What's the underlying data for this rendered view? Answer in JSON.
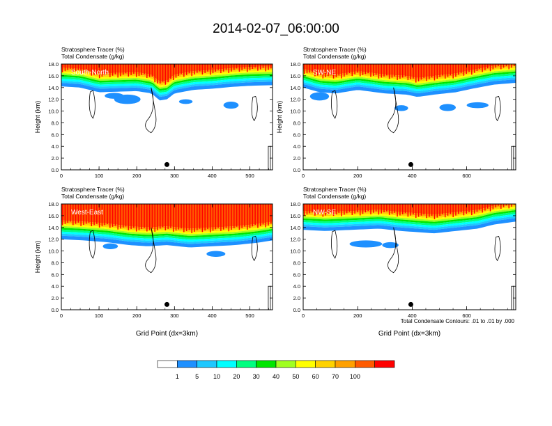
{
  "title": "2014-02-07_06:00:00",
  "colorbar": {
    "colors": [
      "#ffffff",
      "#1e90ff",
      "#1ec8ff",
      "#00ffff",
      "#00ff80",
      "#00e600",
      "#a0ff20",
      "#ffff00",
      "#ffd200",
      "#ffa000",
      "#ff5a00",
      "#ff0000"
    ],
    "labels": [
      "1",
      "5",
      "10",
      "20",
      "30",
      "40",
      "50",
      "60",
      "70",
      "100"
    ]
  },
  "contour_note": "Total Condensate Contours: .01 to .01 by .000",
  "chart_data": [
    {
      "type": "heatmap",
      "panel": "south-north",
      "title_line1": "Stratosphere Tracer   (%)",
      "title_line2": "Total Condensate   (g/kg)",
      "label": "South-North",
      "ylabel": "Height (km)",
      "xlabel": "",
      "xlim": [
        0,
        560
      ],
      "ylim": [
        0,
        18
      ],
      "xticks": [
        "0",
        "100",
        "200",
        "300",
        "400",
        "500"
      ],
      "xtick_values": [
        0,
        100,
        200,
        300,
        400,
        500
      ],
      "yticks": [
        "0.0",
        "2.0",
        "4.0",
        "6.0",
        "8.0",
        "10.0",
        "12.0",
        "14.0",
        "16.0",
        "18.0"
      ],
      "marker_x": 280,
      "profile": {
        "x": [
          0,
          50,
          100,
          150,
          200,
          240,
          260,
          280,
          300,
          350,
          400,
          450,
          500,
          560
        ],
        "h": [
          14.2,
          14.0,
          13.2,
          13.3,
          13.4,
          13.0,
          11.8,
          12.0,
          13.0,
          13.6,
          13.8,
          14.1,
          14.3,
          14.4
        ]
      },
      "patches": [
        [
          175,
          12.0,
          35,
          0.8
        ],
        [
          140,
          12.6,
          25,
          0.5
        ],
        [
          450,
          11.0,
          20,
          0.6
        ],
        [
          330,
          11.6,
          18,
          0.4
        ]
      ]
    },
    {
      "type": "heatmap",
      "panel": "sw-ne",
      "title_line1": "Stratosphere Tracer   (%)",
      "title_line2": "Total Condensate   (g/kg)",
      "label": "SW-NE",
      "ylabel": "Height (km)",
      "xlabel": "",
      "xlim": [
        0,
        780
      ],
      "ylim": [
        0,
        18
      ],
      "xticks": [
        "0",
        "200",
        "400",
        "600"
      ],
      "xtick_values": [
        0,
        200,
        400,
        600
      ],
      "yticks": [
        "0.0",
        "2.0",
        "4.0",
        "6.0",
        "8.0",
        "10.0",
        "12.0",
        "14.0",
        "16.0",
        "18.0"
      ],
      "marker_x": 395,
      "profile": {
        "x": [
          0,
          60,
          120,
          200,
          300,
          380,
          420,
          480,
          560,
          620,
          700,
          780
        ],
        "h": [
          14.0,
          13.2,
          13.0,
          13.6,
          13.0,
          12.8,
          12.4,
          12.8,
          13.2,
          13.8,
          14.5,
          14.8
        ]
      },
      "patches": [
        [
          60,
          12.5,
          35,
          0.7
        ],
        [
          360,
          10.5,
          25,
          0.5
        ],
        [
          530,
          10.6,
          30,
          0.6
        ],
        [
          640,
          11.0,
          40,
          0.5
        ]
      ]
    },
    {
      "type": "heatmap",
      "panel": "west-east",
      "title_line1": "Stratosphere Tracer   (%)",
      "title_line2": "Total Condensate   (g/kg)",
      "label": "West-East",
      "ylabel": "Height (km)",
      "xlabel": "Grid Point (dx=3km)",
      "xlim": [
        0,
        560
      ],
      "ylim": [
        0,
        18
      ],
      "xticks": [
        "0",
        "100",
        "200",
        "300",
        "400",
        "500"
      ],
      "xtick_values": [
        0,
        100,
        200,
        300,
        400,
        500
      ],
      "yticks": [
        "0.0",
        "2.0",
        "4.0",
        "6.0",
        "8.0",
        "10.0",
        "12.0",
        "14.0",
        "16.0",
        "18.0"
      ],
      "marker_x": 280,
      "profile": {
        "x": [
          0,
          60,
          120,
          180,
          230,
          280,
          340,
          400,
          460,
          520,
          560
        ],
        "h": [
          12.0,
          11.8,
          11.5,
          11.0,
          10.8,
          11.0,
          10.6,
          10.8,
          11.0,
          11.4,
          11.8
        ]
      },
      "patches": [
        [
          130,
          10.8,
          20,
          0.5
        ],
        [
          410,
          9.5,
          25,
          0.5
        ]
      ]
    },
    {
      "type": "heatmap",
      "panel": "nw-se",
      "title_line1": "Stratosphere Tracer   (%)",
      "title_line2": "Total Condensate   (g/kg)",
      "label": "NW-SE",
      "ylabel": "",
      "xlabel": "Grid Point (dx=3km)",
      "xlim": [
        0,
        780
      ],
      "ylim": [
        0,
        18
      ],
      "xticks": [
        "0",
        "200",
        "400",
        "600"
      ],
      "xtick_values": [
        0,
        200,
        400,
        600
      ],
      "yticks": [
        "0.0",
        "2.0",
        "4.0",
        "6.0",
        "8.0",
        "10.0",
        "12.0",
        "14.0",
        "16.0",
        "18.0"
      ],
      "marker_x": 395,
      "profile": {
        "x": [
          0,
          80,
          180,
          280,
          360,
          420,
          480,
          560,
          640,
          700,
          780
        ],
        "h": [
          13.6,
          13.4,
          13.6,
          13.8,
          13.4,
          13.2,
          13.0,
          13.4,
          13.8,
          14.5,
          15.0
        ]
      },
      "patches": [
        [
          230,
          11.2,
          60,
          0.6
        ],
        [
          320,
          11.0,
          30,
          0.5
        ]
      ]
    }
  ]
}
